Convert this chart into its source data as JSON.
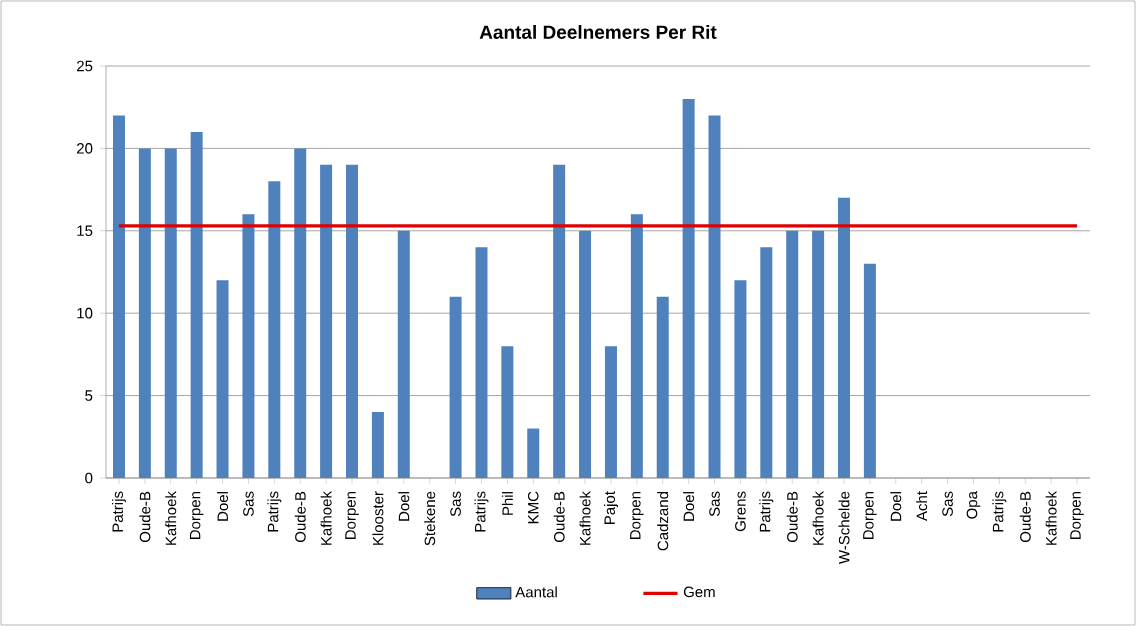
{
  "chart_data": {
    "type": "bar",
    "title": "Aantal Deelnemers Per Rit",
    "categories": [
      "Patrijs",
      "Oude-B",
      "Kafhoek",
      "Dorpen",
      "Doel",
      "Sas",
      "Patrijs",
      "Oude-B",
      "Kafhoek",
      "Dorpen",
      "Klooster",
      "Doel",
      "Stekene",
      "Sas",
      "Patrijs",
      "Phil",
      "KMC",
      "Oude-B",
      "Kafhoek",
      "Pajot",
      "Dorpen",
      "Cadzand",
      "Doel",
      "Sas",
      "Grens",
      "Patrijs",
      "Oude-B",
      "Kafhoek",
      "W-Schelde",
      "Dorpen",
      "Doel",
      "Acht",
      "Sas",
      "Opa",
      "Patrijs",
      "Oude-B",
      "Kafhoek",
      "Dorpen"
    ],
    "series": [
      {
        "name": "Aantal",
        "color": "#4f81bd",
        "values": [
          22,
          20,
          20,
          21,
          12,
          16,
          18,
          20,
          19,
          19,
          4,
          15,
          null,
          11,
          14,
          8,
          3,
          19,
          15,
          8,
          16,
          11,
          23,
          22,
          12,
          14,
          15,
          15,
          17,
          13,
          null,
          null,
          null,
          null,
          null,
          null,
          null,
          null
        ]
      },
      {
        "name": "Gem",
        "type": "line",
        "color": "#e00000",
        "values": [
          15.3,
          15.3,
          15.3,
          15.3,
          15.3,
          15.3,
          15.3,
          15.3,
          15.3,
          15.3,
          15.3,
          15.3,
          15.3,
          15.3,
          15.3,
          15.3,
          15.3,
          15.3,
          15.3,
          15.3,
          15.3,
          15.3,
          15.3,
          15.3,
          15.3,
          15.3,
          15.3,
          15.3,
          15.3,
          15.3,
          15.3,
          15.3,
          15.3,
          15.3,
          15.3,
          15.3,
          15.3,
          15.3
        ]
      }
    ],
    "ylim": [
      0,
      25
    ],
    "yticks": [
      0,
      5,
      10,
      15,
      20,
      25
    ],
    "grid": "y",
    "legend": "bottom"
  }
}
